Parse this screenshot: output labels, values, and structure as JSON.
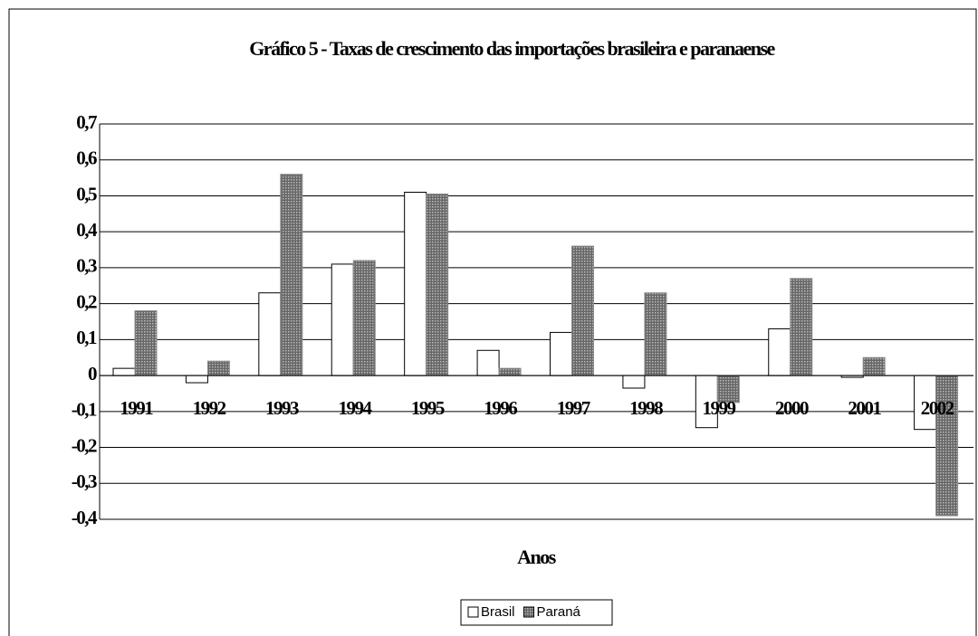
{
  "chart_data": {
    "type": "bar",
    "title": "Gráfico 5 - Taxas de crescimento das importações brasileira e paranaense",
    "x_label": "Anos",
    "categories": [
      "1991",
      "1992",
      "1993",
      "1994",
      "1995",
      "1996",
      "1997",
      "1998",
      "1999",
      "2000",
      "2001",
      "2002"
    ],
    "series": [
      {
        "name": "Brasil",
        "color": "#ffffff",
        "values": [
          0.02,
          -0.02,
          0.23,
          0.31,
          0.51,
          0.07,
          0.12,
          -0.035,
          -0.145,
          0.13,
          -0.005,
          -0.15
        ]
      },
      {
        "name": "Paraná",
        "color": "#8c8c8c",
        "values": [
          0.18,
          0.04,
          0.56,
          0.32,
          0.505,
          0.02,
          0.36,
          0.23,
          -0.075,
          0.27,
          0.05,
          -0.39
        ]
      }
    ],
    "ylim": [
      -0.4,
      0.7
    ],
    "yticks": [
      {
        "value": -0.4,
        "label": "-0,4"
      },
      {
        "value": -0.3,
        "label": "-0,3"
      },
      {
        "value": -0.2,
        "label": "-0,2"
      },
      {
        "value": -0.1,
        "label": "-0,1"
      },
      0,
      {
        "value": 0.1,
        "label": "0,1"
      },
      {
        "value": 0.2,
        "label": "0,2"
      },
      {
        "value": 0.3,
        "label": "0,3"
      },
      {
        "value": 0.4,
        "label": "0,4"
      },
      {
        "value": 0.5,
        "label": "0,5"
      },
      {
        "value": 0.6,
        "label": "0,6"
      },
      {
        "value": 0.7,
        "label": "0,7"
      }
    ],
    "grid": true,
    "legend": "bottom"
  }
}
